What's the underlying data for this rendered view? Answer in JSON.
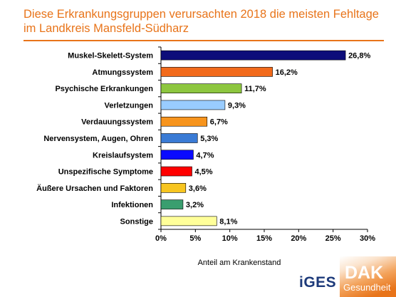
{
  "title": {
    "line1": "Diese Erkrankungsgruppen verursachten 2018 die meisten Fehltage",
    "line2": "im Landkreis Mansfeld-Südharz"
  },
  "chart_data": {
    "type": "bar",
    "orientation": "horizontal",
    "categories": [
      "Muskel-Skelett-System",
      "Atmungssystem",
      "Psychische Erkrankungen",
      "Verletzungen",
      "Verdauungssystem",
      "Nervensystem, Augen, Ohren",
      "Kreislaufsystem",
      "Unspezifische Symptome",
      "Äußere Ursachen und Faktoren",
      "Infektionen",
      "Sonstige"
    ],
    "values": [
      26.8,
      16.2,
      11.7,
      9.3,
      6.7,
      5.3,
      4.7,
      4.5,
      3.6,
      3.2,
      8.1
    ],
    "value_labels": [
      "26,8%",
      "16,2%",
      "11,7%",
      "9,3%",
      "6,7%",
      "5,3%",
      "4,7%",
      "4,5%",
      "3,6%",
      "3,2%",
      "8,1%"
    ],
    "colors": [
      "#0d0d7a",
      "#f26a1b",
      "#8dc63f",
      "#99ccff",
      "#f7941d",
      "#3a7bd5",
      "#0a0aff",
      "#ff0000",
      "#f7c520",
      "#3a9e6f",
      "#ffff99"
    ],
    "xlim": [
      0,
      30
    ],
    "ticks": [
      0,
      5,
      10,
      15,
      20,
      25,
      30
    ],
    "tick_labels": [
      "0%",
      "5%",
      "10%",
      "15%",
      "20%",
      "25%",
      "30%"
    ],
    "xlabel": "Anteil am Krankenstand",
    "grid": false
  },
  "logos": {
    "iges": "iGES",
    "dak": "DAK",
    "dak_sub": "Gesundheit"
  }
}
